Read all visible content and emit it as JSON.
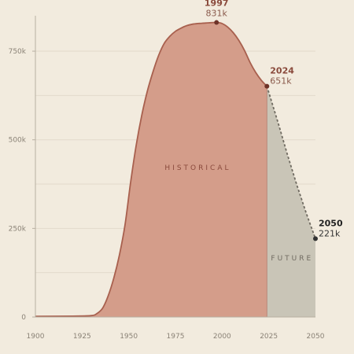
{
  "chart_data": {
    "type": "area",
    "x_ticks": [
      1900,
      1925,
      1950,
      1975,
      2000,
      2025,
      2050
    ],
    "y_ticks": [
      {
        "value": 0,
        "label": "0"
      },
      {
        "value": 250000,
        "label": "250k"
      },
      {
        "value": 500000,
        "label": "500k"
      },
      {
        "value": 750000,
        "label": "750k"
      }
    ],
    "xlim": [
      1900,
      2050
    ],
    "ylim": [
      0,
      850000
    ],
    "grid": true,
    "series": [
      {
        "x": [
          1900,
          1920,
          1930,
          1933,
          1936,
          1939,
          1942,
          1945,
          1948,
          1951,
          1954,
          1957,
          1960,
          1963,
          1966,
          1969,
          1972,
          1975,
          1978,
          1981,
          1984,
          1987,
          1990,
          1993,
          1997,
          2000,
          2003,
          2006,
          2009,
          2012,
          2015,
          2018,
          2021,
          2024
        ],
        "y": [
          2000,
          2500,
          4000,
          10000,
          25000,
          60000,
          110000,
          175000,
          260000,
          380000,
          485000,
          570000,
          638000,
          692000,
          738000,
          772000,
          792000,
          806000,
          815000,
          822000,
          826000,
          828000,
          829000,
          830000,
          831000,
          828000,
          818000,
          802000,
          780000,
          752000,
          718000,
          690000,
          668000,
          651000
        ],
        "color": "#d49d8a",
        "line_color": "#a8604e"
      },
      {
        "x": [
          2024,
          2030,
          2035,
          2040,
          2045,
          2050
        ],
        "y": [
          651000,
          548000,
          458000,
          373000,
          294000,
          221000
        ],
        "color": "#c9c5b7",
        "line_color": "#6f6a60"
      }
    ],
    "region_labels": [
      {
        "text": "HISTORICAL",
        "x": 1987,
        "y": 415000,
        "color": "#8a4a3c"
      },
      {
        "text": "FUTURE",
        "x": 2037.5,
        "y": 160000,
        "color": "#6f6a60"
      }
    ],
    "annotations": [
      {
        "year": "1997",
        "value": "831k",
        "x": 1997,
        "y": 831000,
        "color": "#8a4a3c"
      },
      {
        "year": "2024",
        "value": "651k",
        "x": 2024,
        "y": 651000,
        "color": "#8a4a3c"
      },
      {
        "year": "2050",
        "value": "221k",
        "x": 2050,
        "y": 221000,
        "color": "#222222"
      }
    ],
    "colors": {
      "background": "#f2ebde",
      "grid": "#e2dacb",
      "axis": "#b8b0a2"
    }
  }
}
